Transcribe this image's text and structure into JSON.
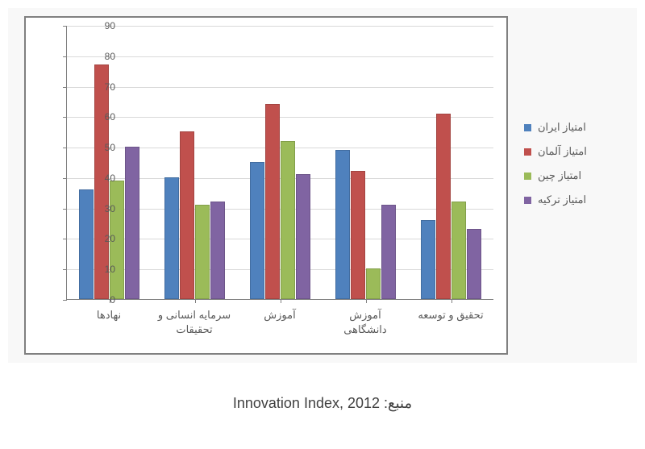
{
  "chart": {
    "type": "bar",
    "background_color": "#ffffff",
    "outer_background": "#f8f8f8",
    "gridline_color": "#d9d9d9",
    "axis_color": "#808080",
    "label_color": "#595959",
    "label_fontsize": 13,
    "ylim": [
      0,
      90
    ],
    "ytick_step": 10,
    "yticks": [
      "0",
      "10",
      "20",
      "30",
      "40",
      "50",
      "60",
      "70",
      "80",
      "90"
    ],
    "categories": [
      "نهادها",
      "سرمایه انسانی و\nتحقیقات",
      "آموزش",
      "آموزش\nدانشگاهی",
      "تحقیق و توسعه"
    ],
    "series": [
      {
        "name": "امتیاز ایران",
        "color": "#4f81bd",
        "values": [
          36,
          40,
          45,
          49,
          26
        ]
      },
      {
        "name": "امتیاز آلمان",
        "color": "#c0504d",
        "values": [
          77,
          55,
          64,
          42,
          61
        ]
      },
      {
        "name": "امتیاز چین",
        "color": "#9bbb59",
        "values": [
          39,
          31,
          52,
          10,
          32
        ]
      },
      {
        "name": "امتیاز ترکیه",
        "color": "#8064a2",
        "values": [
          50,
          32,
          41,
          31,
          23
        ]
      }
    ],
    "bar_group_width": 0.72,
    "bar_gap_in_group": 0.01
  },
  "caption": "منبع: Innovation Index, 2012"
}
